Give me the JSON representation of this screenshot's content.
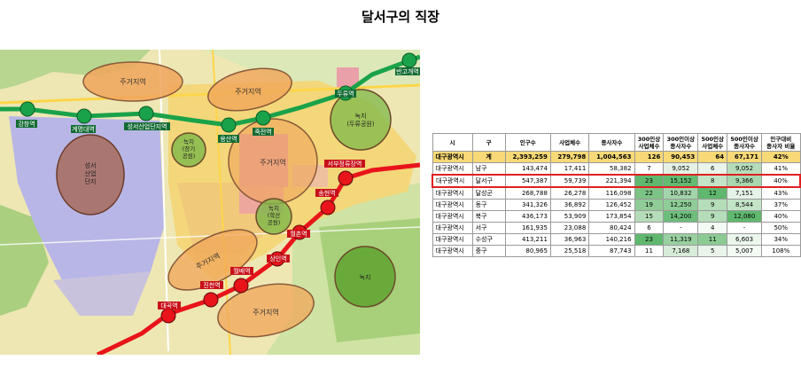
{
  "title": "달서구의 직장",
  "map": {
    "stations": [
      "강창역",
      "계명대역",
      "성서산업단지역",
      "용산역",
      "죽전역",
      "두류역",
      "반고개역",
      "서부정류장역",
      "송현역",
      "월촌역",
      "상인역",
      "월배역",
      "진천역",
      "대곡역"
    ],
    "zones": [
      "주거지역",
      "주거지역",
      "주거지역",
      "주거지역",
      "주거지역"
    ],
    "industrial": "성서\n산업\n단지",
    "green": [
      "녹지\n(두류공원)",
      "녹지\n(장기\n공원)",
      "녹지\n(학산\n공원)",
      "녹지"
    ],
    "colors": {
      "line2": "#1aa24a",
      "line1": "#e8141a",
      "residential": "#f0a55a",
      "industrial": "#8a5a3a",
      "green": "#5aa02c"
    }
  },
  "table": {
    "headers": [
      "시",
      "구",
      "인구수",
      "사업체수",
      "종사자수",
      "300인상\n사업체수",
      "300인이상\n종사자수",
      "500인상\n사업체수",
      "500인이상\n종사자수",
      "인구대비\n종사자 비율"
    ],
    "rows": [
      [
        "대구광역시",
        "계",
        "2,393,259",
        "279,798",
        "1,004,563",
        "126",
        "90,453",
        "64",
        "67,171",
        "42%"
      ],
      [
        "대구광역시",
        "남구",
        "143,474",
        "17,411",
        "58,382",
        "7",
        "9,052",
        "6",
        "9,052",
        "41%"
      ],
      [
        "대구광역시",
        "달서구",
        "547,387",
        "59,739",
        "221,394",
        "23",
        "15,152",
        "8",
        "9,366",
        "40%"
      ],
      [
        "대구광역시",
        "달성군",
        "268,788",
        "26,278",
        "116,098",
        "22",
        "10,832",
        "12",
        "7,151",
        "43%"
      ],
      [
        "대구광역시",
        "동구",
        "341,326",
        "36,892",
        "126,452",
        "19",
        "12,250",
        "9",
        "8,544",
        "37%"
      ],
      [
        "대구광역시",
        "북구",
        "436,173",
        "53,909",
        "173,854",
        "15",
        "14,200",
        "9",
        "12,080",
        "40%"
      ],
      [
        "대구광역시",
        "서구",
        "161,935",
        "23,088",
        "80,424",
        "6",
        "-",
        "4",
        "-",
        "50%"
      ],
      [
        "대구광역시",
        "수성구",
        "413,211",
        "36,963",
        "140,216",
        "23",
        "11,319",
        "11",
        "6,603",
        "34%"
      ],
      [
        "대구광역시",
        "중구",
        "80,965",
        "25,518",
        "87,743",
        "11",
        "7,168",
        "5",
        "5,007",
        "108%"
      ]
    ],
    "highlight_row": 2,
    "heat": {
      "col5": [
        "#ffffff",
        "#ffffff",
        "#5fb86e",
        "#7cc486",
        "#8fcc97",
        "#b5ddb9",
        "#ffffff",
        "#5fb86e",
        "#ffffff"
      ],
      "col6": [
        "#ffffff",
        "#e4f2e5",
        "#63ba71",
        "#a3d5aa",
        "#8fcc97",
        "#6ebe7b",
        "#ffffff",
        "#99d0a0",
        "#d7ecd9"
      ],
      "col7": [
        "#ffffff",
        "#e9f4ea",
        "#c4e4c8",
        "#5fb86e",
        "#b5ddb9",
        "#b5ddb9",
        "#f4faf4",
        "#8cca94",
        "#e9f4ea"
      ],
      "col8": [
        "#ffffff",
        "#b5ddb9",
        "#a8d7ae",
        "#e6f3e7",
        "#c4e4c8",
        "#5fb86e",
        "#ffffff",
        "#ecf6ed",
        "#f4faf4"
      ]
    }
  }
}
